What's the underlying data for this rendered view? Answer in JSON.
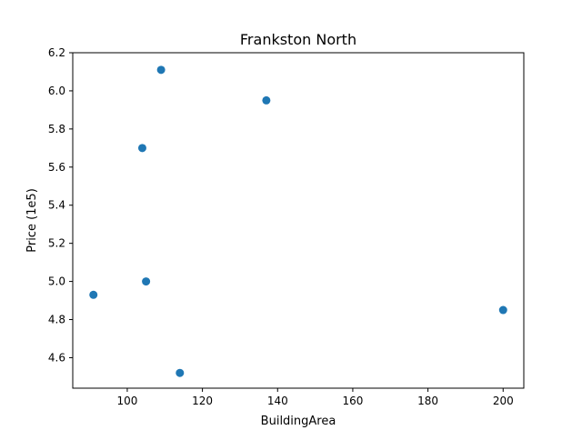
{
  "chart_data": {
    "type": "scatter",
    "title": "Frankston North",
    "xlabel": "BuildingArea",
    "ylabel": "Price (1e5)",
    "xlim": [
      85.5,
      205.5
    ],
    "ylim": [
      4.44,
      6.2
    ],
    "xticks": [
      100,
      120,
      140,
      160,
      180,
      200
    ],
    "xtick_labels": [
      "100",
      "120",
      "140",
      "160",
      "180",
      "200"
    ],
    "yticks": [
      4.6,
      4.8,
      5.0,
      5.2,
      5.4,
      5.6,
      5.8,
      6.0,
      6.2
    ],
    "ytick_labels": [
      "4.6",
      "4.8",
      "5.0",
      "5.2",
      "5.4",
      "5.6",
      "5.8",
      "6.0",
      "6.2"
    ],
    "grid": false,
    "legend": "none",
    "marker_color": "#1f77b4",
    "points": [
      {
        "x": 91,
        "y": 4.93
      },
      {
        "x": 104,
        "y": 5.7
      },
      {
        "x": 105,
        "y": 5.0
      },
      {
        "x": 109,
        "y": 6.11
      },
      {
        "x": 114,
        "y": 4.52
      },
      {
        "x": 137,
        "y": 5.95
      },
      {
        "x": 200,
        "y": 4.85
      }
    ]
  }
}
